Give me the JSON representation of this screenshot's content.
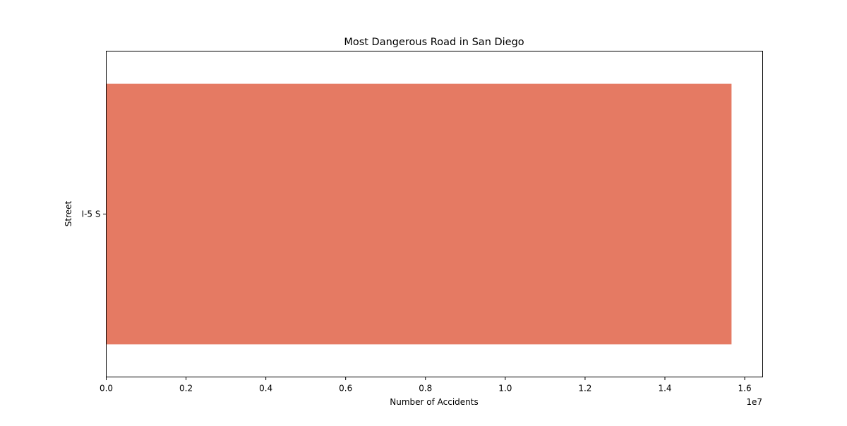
{
  "chart_data": {
    "type": "bar",
    "orientation": "horizontal",
    "title": "Most Dangerous Road in San Diego",
    "xlabel": "Number of Accidents",
    "ylabel": "Street",
    "categories": [
      "I-5 S"
    ],
    "values": [
      15670000
    ],
    "xlim": [
      0,
      16450000
    ],
    "x_scale_note": "1e7",
    "x_ticks": [
      0,
      2000000,
      4000000,
      6000000,
      8000000,
      10000000,
      12000000,
      14000000,
      16000000
    ],
    "x_tick_labels": [
      "0.0",
      "0.2",
      "0.4",
      "0.6",
      "0.8",
      "1.0",
      "1.2",
      "1.4",
      "1.6"
    ],
    "bar_color": "#e57a63",
    "grid": false,
    "legend": "none"
  }
}
